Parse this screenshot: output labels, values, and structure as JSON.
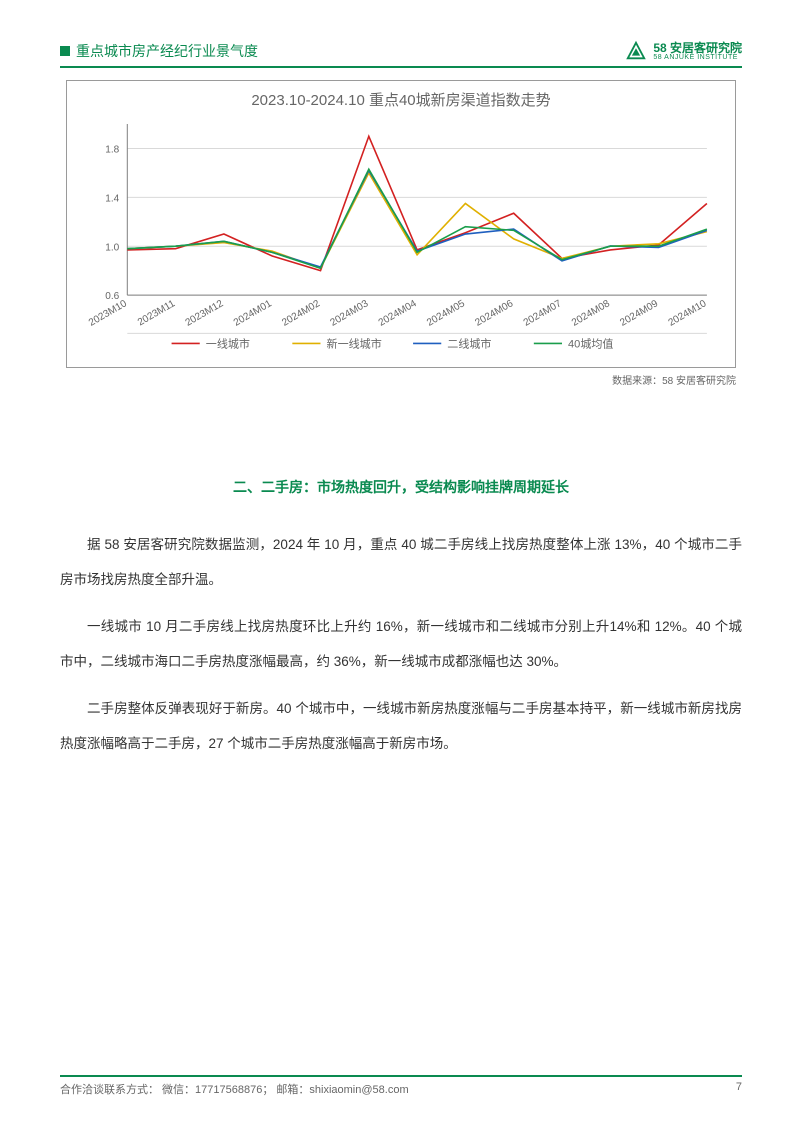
{
  "header": {
    "title": "重点城市房产经纪行业景气度",
    "logo_main": "58 安居客研究院",
    "logo_sub": "58 ANJUKE INSTITUTE"
  },
  "chart": {
    "type": "line",
    "title": "2023.10-2024.10 重点40城新房渠道指数走势",
    "title_fontsize": 15,
    "title_color": "#666666",
    "background_color": "#ffffff",
    "grid_color": "#d9d9d9",
    "axis_color": "#808080",
    "tick_color": "#666666",
    "tick_fontsize": 10,
    "ylim": [
      0.6,
      2.0
    ],
    "yticks": [
      0.6,
      1.0,
      1.4,
      1.8
    ],
    "xlabels": [
      "2023M10",
      "2023M11",
      "2023M12",
      "2024M01",
      "2024M02",
      "2024M03",
      "2024M04",
      "2024M05",
      "2024M06",
      "2024M07",
      "2024M08",
      "2024M09",
      "2024M10"
    ],
    "xlabel_rotation": -30,
    "line_width": 1.6,
    "series": [
      {
        "name": "一线城市",
        "color": "#d32121",
        "values": [
          0.97,
          0.98,
          1.1,
          0.92,
          0.8,
          1.9,
          0.97,
          1.11,
          1.27,
          0.9,
          0.97,
          1.01,
          1.35
        ]
      },
      {
        "name": "新一线城市",
        "color": "#e0b000",
        "values": [
          0.98,
          1.0,
          1.03,
          0.96,
          0.82,
          1.6,
          0.93,
          1.35,
          1.06,
          0.9,
          1.0,
          1.02,
          1.12
        ]
      },
      {
        "name": "二线城市",
        "color": "#1f5fbf",
        "values": [
          0.98,
          1.0,
          1.04,
          0.95,
          0.83,
          1.62,
          0.96,
          1.1,
          1.14,
          0.88,
          1.002,
          0.99,
          1.13
        ]
      },
      {
        "name": "40城均值",
        "color": "#1a9e4b",
        "values": [
          0.98,
          1.0,
          1.04,
          0.95,
          0.82,
          1.63,
          0.95,
          1.16,
          1.13,
          0.89,
          1.0,
          1.0,
          1.14
        ]
      }
    ],
    "legend_fontsize": 11,
    "legend_color": "#666666"
  },
  "data_source": "数据来源：58 安居客研究院",
  "section_heading": "二、二手房：市场热度回升，受结构影响挂牌周期延长",
  "paragraphs": [
    "据 58 安居客研究院数据监测，2024 年 10 月，重点 40 城二手房线上找房热度整体上涨 13%，40 个城市二手房市场找房热度全部升温。",
    "一线城市 10 月二手房线上找房热度环比上升约 16%，新一线城市和二线城市分别上升14%和 12%。40 个城市中，二线城市海口二手房热度涨幅最高，约 36%，新一线城市成都涨幅也达 30%。",
    "二手房整体反弹表现好于新房。40 个城市中，一线城市新房热度涨幅与二手房基本持平，新一线城市新房找房热度涨幅略高于二手房，27 个城市二手房热度涨幅高于新房市场。"
  ],
  "footer": {
    "contact": "合作洽谈联系方式：  微信：17717568876；  邮箱：shixiaomin@58.com",
    "page": "7"
  }
}
